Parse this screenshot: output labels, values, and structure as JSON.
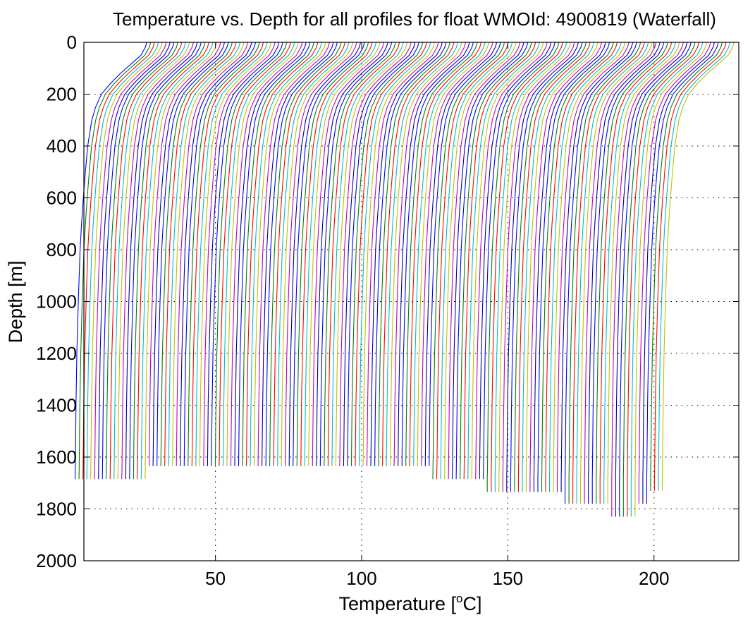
{
  "chart_data": {
    "type": "line",
    "title": "Temperature vs. Depth for all profiles for float WMOId: 4900819 (Waterfall)",
    "xlabel_main": "Temperature [",
    "xlabel_sup": "o",
    "xlabel_tail": "C]",
    "ylabel": "Depth [m]",
    "xlim": [
      5,
      229
    ],
    "ylim": [
      0,
      2000
    ],
    "y_reversed": true,
    "grid": "dotted",
    "x_ticks": [
      "50",
      "100",
      "150",
      "200"
    ],
    "y_ticks": [
      "0",
      "200",
      "400",
      "600",
      "800",
      "1000",
      "1200",
      "1400",
      "1600",
      "1800",
      "2000"
    ],
    "color_cycle": [
      "#0000ff",
      "#008000",
      "#ff0000",
      "#00bfbf",
      "#bfbf00",
      "#bf00bf",
      "#0000a0"
    ],
    "waterfall": {
      "profile_count": 152,
      "first_offset": 0,
      "offset_step": 1.33,
      "temperature_profile": {
        "depth": [
          0,
          20,
          50,
          80,
          120,
          160,
          200,
          250,
          300,
          400,
          500,
          600,
          700,
          800,
          1000,
          1200,
          1400,
          1600,
          1650,
          1680
        ],
        "temperature": [
          26.5,
          26.0,
          24.5,
          21.5,
          17.5,
          14.0,
          11.0,
          9.0,
          7.7,
          6.3,
          5.5,
          4.8,
          4.2,
          3.7,
          3.1,
          2.6,
          2.3,
          2.1,
          2.05,
          2.0
        ]
      },
      "bottom_depths": [
        {
          "from_profile": 0,
          "depth": 1685
        },
        {
          "from_profile": 19,
          "depth": 1635
        },
        {
          "from_profile": 92,
          "depth": 1685
        },
        {
          "from_profile": 106,
          "depth": 1735
        },
        {
          "from_profile": 126,
          "depth": 1780
        },
        {
          "from_profile": 138,
          "depth": 1830
        },
        {
          "from_profile": 145,
          "depth": 1780
        },
        {
          "from_profile": 148,
          "depth": 1730
        }
      ]
    }
  }
}
